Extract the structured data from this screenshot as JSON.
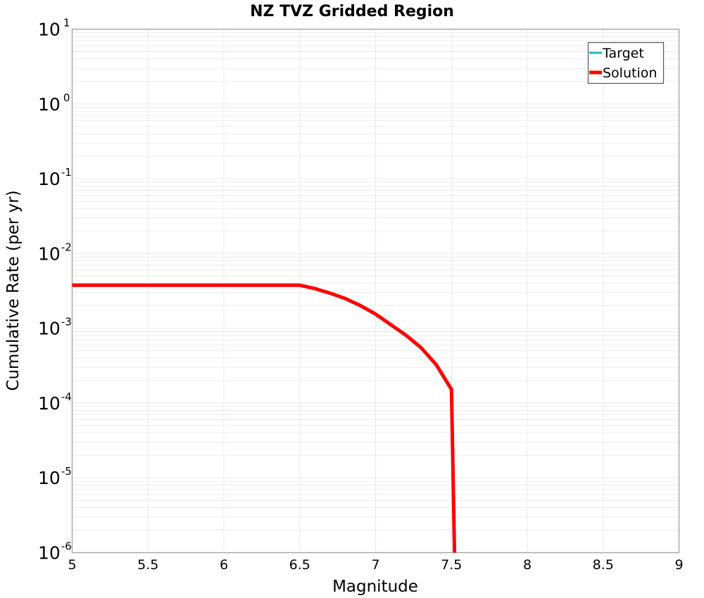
{
  "chart_data": {
    "type": "line",
    "title": "NZ TVZ Gridded Region",
    "xlabel": "Magnitude",
    "ylabel": "Cumulative Rate (per yr)",
    "xlim": [
      5,
      9
    ],
    "ylim": [
      1e-06,
      10
    ],
    "yscale": "log",
    "grid": true,
    "x_ticks": [
      "5",
      "5.5",
      "6",
      "6.5",
      "7",
      "7.5",
      "8",
      "8.5",
      "9"
    ],
    "y_ticks": [
      {
        "base": "10",
        "exp": "1"
      },
      {
        "base": "10",
        "exp": "0"
      },
      {
        "base": "10",
        "exp": "-1"
      },
      {
        "base": "10",
        "exp": "-2"
      },
      {
        "base": "10",
        "exp": "-3"
      },
      {
        "base": "10",
        "exp": "-4"
      },
      {
        "base": "10",
        "exp": "-5"
      },
      {
        "base": "10",
        "exp": "-6"
      }
    ],
    "legend_position": "top-right",
    "series": [
      {
        "name": "Target",
        "color": "#1fb8bd",
        "line_width": 3,
        "x": [],
        "values": []
      },
      {
        "name": "Solution",
        "color": "#ff0000",
        "line_width": 5,
        "x": [
          5.0,
          5.1,
          5.2,
          5.3,
          5.4,
          5.5,
          5.6,
          5.7,
          5.8,
          5.9,
          6.0,
          6.1,
          6.2,
          6.3,
          6.4,
          6.5,
          6.6,
          6.7,
          6.8,
          6.9,
          7.0,
          7.1,
          7.2,
          7.3,
          7.4,
          7.5,
          7.52
        ],
        "values": [
          0.00377,
          0.00377,
          0.00377,
          0.00377,
          0.00377,
          0.00377,
          0.00377,
          0.00377,
          0.00377,
          0.00377,
          0.00377,
          0.00377,
          0.00377,
          0.00377,
          0.00377,
          0.00377,
          0.0034,
          0.00295,
          0.0025,
          0.00201,
          0.00155,
          0.00112,
          0.00081,
          0.00055,
          0.000326,
          0.000152,
          9.5e-07
        ]
      }
    ]
  },
  "legend": {
    "items": [
      {
        "label": "Target",
        "color": "#1fb8bd"
      },
      {
        "label": "Solution",
        "color": "#ff0000"
      }
    ]
  },
  "style": {
    "grid_color": "#ebebeb",
    "axis_color": "#a8a8a8",
    "legend_border": "#555555"
  }
}
